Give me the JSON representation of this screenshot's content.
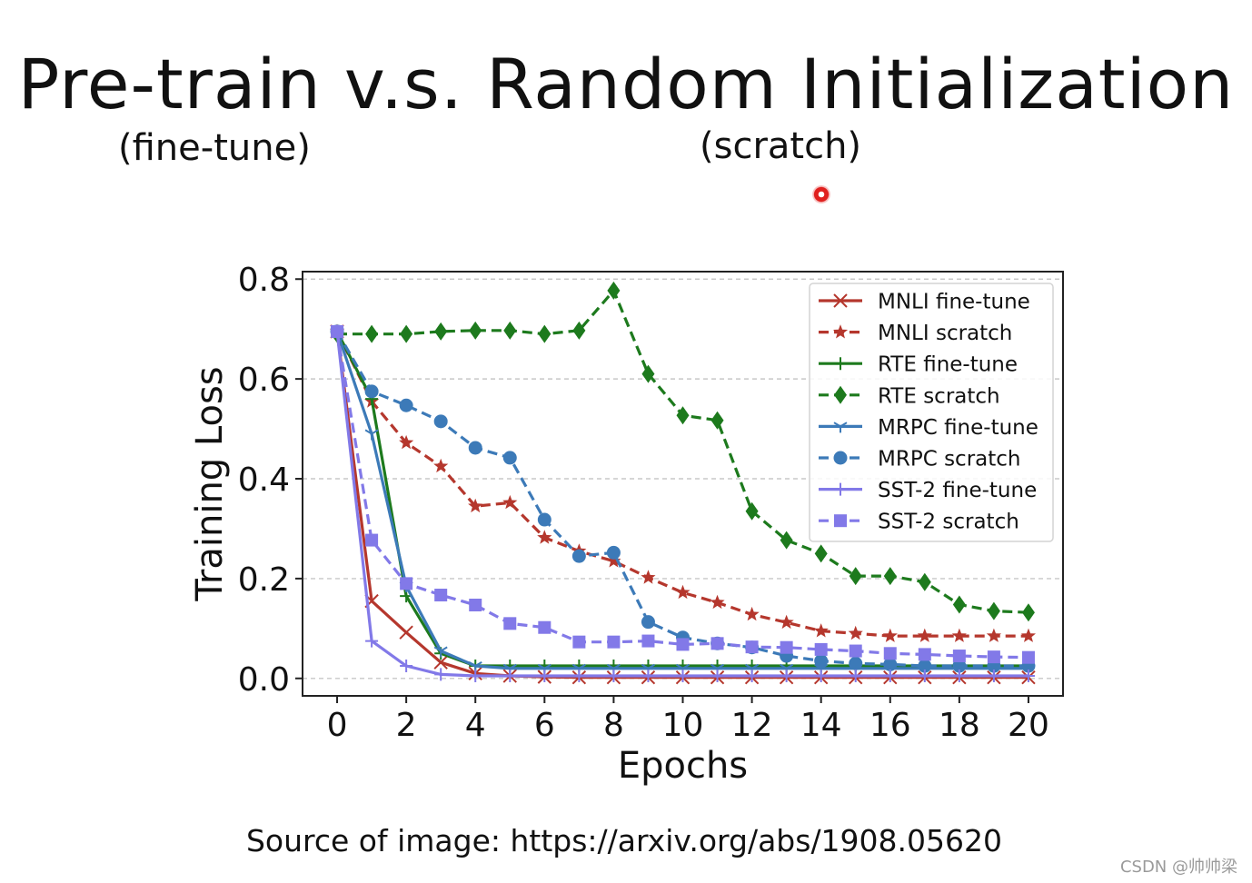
{
  "slide": {
    "title": "Pre-train v.s. Random Initialization",
    "subtitle_left": "(fine-tune)",
    "subtitle_right": "(scratch)",
    "source": "Source of image: https://arxiv.org/abs/1908.05620",
    "watermark": "CSDN @帅帅梁"
  },
  "chart_data": {
    "type": "line",
    "xlabel": "Epochs",
    "ylabel": "Training Loss",
    "xlim": [
      -1,
      21
    ],
    "ylim": [
      -0.035,
      0.815
    ],
    "xticks": [
      0,
      2,
      4,
      6,
      8,
      10,
      12,
      14,
      16,
      18,
      20
    ],
    "yticks": [
      0.0,
      0.2,
      0.4,
      0.6,
      0.8
    ],
    "ytick_labels": [
      "0.0",
      "0.2",
      "0.4",
      "0.6",
      "0.8"
    ],
    "grid": "horizontal dashed",
    "legend_position": "upper-right",
    "x": [
      0,
      1,
      2,
      3,
      4,
      5,
      6,
      7,
      8,
      9,
      10,
      11,
      12,
      13,
      14,
      15,
      16,
      17,
      18,
      19,
      20
    ],
    "series": [
      {
        "name": "MNLI fine-tune",
        "color": "#b5372d",
        "dash": "solid",
        "marker": "x",
        "values": [
          0.695,
          0.155,
          0.092,
          0.032,
          0.01,
          0.005,
          0.003,
          0.002,
          0.002,
          0.002,
          0.002,
          0.002,
          0.002,
          0.002,
          0.002,
          0.002,
          0.002,
          0.002,
          0.002,
          0.002,
          0.002
        ]
      },
      {
        "name": "MNLI scratch",
        "color": "#b5372d",
        "dash": "dashed",
        "marker": "star",
        "values": [
          0.695,
          0.555,
          0.472,
          0.425,
          0.345,
          0.352,
          0.282,
          0.255,
          0.235,
          0.202,
          0.172,
          0.152,
          0.128,
          0.112,
          0.095,
          0.09,
          0.085,
          0.085,
          0.085,
          0.085,
          0.085
        ]
      },
      {
        "name": "RTE fine-tune",
        "color": "#1d7a1d",
        "dash": "solid",
        "marker": "plus",
        "values": [
          0.695,
          0.56,
          0.165,
          0.05,
          0.025,
          0.025,
          0.025,
          0.025,
          0.025,
          0.025,
          0.025,
          0.025,
          0.025,
          0.025,
          0.025,
          0.025,
          0.025,
          0.025,
          0.025,
          0.025,
          0.025
        ]
      },
      {
        "name": "RTE scratch",
        "color": "#1d7a1d",
        "dash": "dashed",
        "marker": "diamond",
        "values": [
          0.69,
          0.69,
          0.69,
          0.695,
          0.697,
          0.697,
          0.69,
          0.697,
          0.777,
          0.61,
          0.527,
          0.517,
          0.335,
          0.277,
          0.25,
          0.205,
          0.205,
          0.193,
          0.148,
          0.135,
          0.132
        ]
      },
      {
        "name": "MRPC fine-tune",
        "color": "#3c7ab8",
        "dash": "solid",
        "marker": "tri",
        "values": [
          0.695,
          0.49,
          0.185,
          0.055,
          0.025,
          0.02,
          0.02,
          0.02,
          0.02,
          0.02,
          0.02,
          0.02,
          0.02,
          0.02,
          0.02,
          0.02,
          0.02,
          0.02,
          0.02,
          0.02,
          0.02
        ]
      },
      {
        "name": "MRPC scratch",
        "color": "#3c7ab8",
        "dash": "dashed",
        "marker": "circle",
        "values": [
          0.695,
          0.575,
          0.547,
          0.515,
          0.462,
          0.442,
          0.318,
          0.245,
          0.252,
          0.113,
          0.082,
          0.07,
          0.062,
          0.045,
          0.035,
          0.03,
          0.028,
          0.025,
          0.025,
          0.025,
          0.025
        ]
      },
      {
        "name": "SST-2 fine-tune",
        "color": "#8279e8",
        "dash": "solid",
        "marker": "plus",
        "values": [
          0.695,
          0.075,
          0.025,
          0.008,
          0.005,
          0.005,
          0.005,
          0.005,
          0.005,
          0.005,
          0.005,
          0.005,
          0.005,
          0.005,
          0.005,
          0.005,
          0.005,
          0.005,
          0.005,
          0.005,
          0.005
        ]
      },
      {
        "name": "SST-2 scratch",
        "color": "#8279e8",
        "dash": "dashed",
        "marker": "square",
        "values": [
          0.695,
          0.277,
          0.19,
          0.167,
          0.147,
          0.11,
          0.102,
          0.073,
          0.073,
          0.075,
          0.068,
          0.07,
          0.063,
          0.062,
          0.058,
          0.055,
          0.05,
          0.048,
          0.045,
          0.043,
          0.042
        ]
      }
    ]
  }
}
